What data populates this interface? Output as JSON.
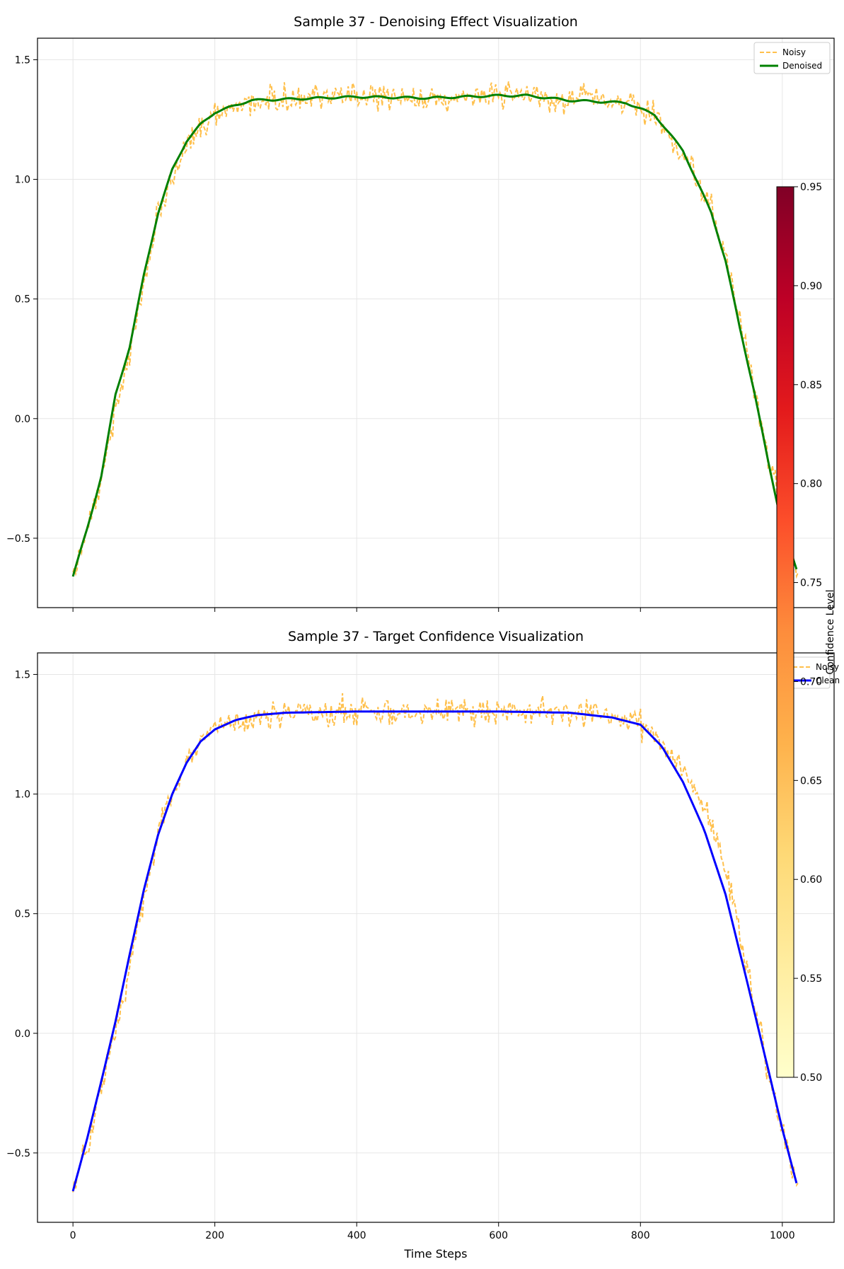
{
  "chart_data": [
    {
      "type": "line",
      "title": "Sample 37 - Denoising Effect Visualization",
      "xlabel": "",
      "ylabel": "",
      "xlim": [
        -50,
        1073
      ],
      "ylim": [
        -0.79,
        1.59
      ],
      "xticks": [
        0,
        200,
        400,
        600,
        800,
        1000
      ],
      "yticks": [
        -0.5,
        0.0,
        0.5,
        1.0,
        1.5
      ],
      "ytick_labels": [
        "−0.5",
        "0.0",
        "0.5",
        "1.0",
        "1.5"
      ],
      "grid": true,
      "legend_position": "top-right",
      "series": [
        {
          "name": "Noisy",
          "style": "dashed",
          "color": "#FFA500",
          "noise_amplitude": 0.035,
          "x": [
            0,
            20,
            40,
            60,
            80,
            100,
            120,
            140,
            160,
            180,
            200,
            250,
            300,
            400,
            500,
            600,
            700,
            780,
            820,
            860,
            900,
            920,
            940,
            960,
            980,
            1000,
            1023
          ],
          "y": [
            -0.66,
            -0.46,
            -0.24,
            0.02,
            0.27,
            0.58,
            0.84,
            1.02,
            1.14,
            1.22,
            1.27,
            1.32,
            1.34,
            1.345,
            1.345,
            1.345,
            1.34,
            1.32,
            1.26,
            1.12,
            0.88,
            0.68,
            0.44,
            0.14,
            -0.16,
            -0.42,
            -0.66
          ]
        },
        {
          "name": "Denoised",
          "style": "solid",
          "color": "#008000",
          "x": [
            0,
            20,
            40,
            60,
            80,
            100,
            120,
            140,
            160,
            180,
            200,
            250,
            300,
            400,
            500,
            600,
            640,
            700,
            780,
            820,
            860,
            900,
            920,
            940,
            960,
            980,
            1000,
            1023
          ],
          "y": [
            -0.66,
            -0.46,
            -0.24,
            0.1,
            0.3,
            0.6,
            0.86,
            1.04,
            1.16,
            1.23,
            1.28,
            1.33,
            1.335,
            1.345,
            1.34,
            1.35,
            1.35,
            1.33,
            1.32,
            1.27,
            1.12,
            0.86,
            0.66,
            0.38,
            0.12,
            -0.18,
            -0.45,
            -0.66
          ]
        }
      ]
    },
    {
      "type": "line",
      "title": "Sample 37 - Target Confidence Visualization",
      "xlabel": "Time Steps",
      "ylabel": "",
      "xlim": [
        -50,
        1073
      ],
      "ylim": [
        -0.79,
        1.59
      ],
      "xticks": [
        0,
        200,
        400,
        600,
        800,
        1000
      ],
      "yticks": [
        -0.5,
        0.0,
        0.5,
        1.0,
        1.5
      ],
      "ytick_labels": [
        "−0.5",
        "0.0",
        "0.5",
        "1.0",
        "1.5"
      ],
      "grid": true,
      "legend_position": "top-right",
      "series": [
        {
          "name": "Noisy",
          "style": "dashed",
          "color": "#FFA500",
          "noise_amplitude": 0.035,
          "x": [
            0,
            20,
            40,
            60,
            80,
            100,
            120,
            140,
            160,
            180,
            200,
            250,
            300,
            400,
            500,
            600,
            700,
            780,
            820,
            860,
            900,
            920,
            940,
            960,
            980,
            1000,
            1023
          ],
          "y": [
            -0.66,
            -0.46,
            -0.24,
            0.02,
            0.27,
            0.58,
            0.84,
            1.02,
            1.14,
            1.22,
            1.27,
            1.32,
            1.34,
            1.345,
            1.345,
            1.345,
            1.34,
            1.32,
            1.26,
            1.12,
            0.88,
            0.68,
            0.44,
            0.14,
            -0.16,
            -0.42,
            -0.66
          ]
        },
        {
          "name": "Clean",
          "style": "solid",
          "color": "#0000FF",
          "x": [
            0,
            20,
            40,
            60,
            80,
            100,
            120,
            140,
            160,
            180,
            200,
            230,
            260,
            300,
            400,
            500,
            600,
            700,
            760,
            800,
            830,
            860,
            890,
            920,
            950,
            980,
            1000,
            1023
          ],
          "y": [
            -0.66,
            -0.44,
            -0.2,
            0.05,
            0.33,
            0.6,
            0.83,
            1.0,
            1.13,
            1.22,
            1.27,
            1.31,
            1.33,
            1.34,
            1.345,
            1.345,
            1.345,
            1.34,
            1.32,
            1.29,
            1.2,
            1.05,
            0.85,
            0.58,
            0.22,
            -0.15,
            -0.4,
            -0.66
          ]
        }
      ]
    }
  ],
  "colorbar": {
    "label": "Confidence Level",
    "range": [
      0.5,
      0.95
    ],
    "ticks": [
      "0.50",
      "0.55",
      "0.60",
      "0.65",
      "0.70",
      "0.75",
      "0.80",
      "0.85",
      "0.90",
      "0.95"
    ],
    "colormap": [
      "#FFFFCC",
      "#FFEDA0",
      "#FED976",
      "#FEB24C",
      "#FD8D3C",
      "#FC4E2A",
      "#E31A1C",
      "#BD0026",
      "#800026"
    ]
  }
}
